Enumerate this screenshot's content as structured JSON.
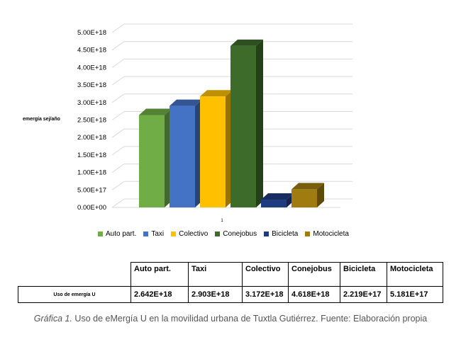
{
  "chart_data": {
    "type": "bar",
    "ylabel": "emergía sej/año",
    "xlabel": "1",
    "categories": [
      "1"
    ],
    "ylim": [
      0,
      5e+18
    ],
    "yticks": [
      "0.00E+00",
      "5.00E+17",
      "1.00E+18",
      "1.50E+18",
      "2.00E+18",
      "2.50E+18",
      "3.00E+18",
      "3.50E+18",
      "4.00E+18",
      "4.50E+18",
      "5.00E+18"
    ],
    "grid": true,
    "legend_position": "bottom",
    "series": [
      {
        "name": "Auto part.",
        "value": 2.642e+18,
        "color": "#70ad47"
      },
      {
        "name": "Taxi",
        "value": 2.903e+18,
        "color": "#4472c4"
      },
      {
        "name": "Colectivo",
        "value": 3.172e+18,
        "color": "#ffc000"
      },
      {
        "name": "Conejobus",
        "value": 4.618e+18,
        "color": "#3d6b2a"
      },
      {
        "name": "Bicicleta",
        "value": 2.219e+17,
        "color": "#1f3b80"
      },
      {
        "name": "Motocicleta",
        "value": 5.181e+17,
        "color": "#a07c10"
      }
    ]
  },
  "table": {
    "headers": [
      "Auto part.",
      "Taxi",
      "Colectivo",
      "Conejobus",
      "Bicicleta",
      "Motocicleta"
    ],
    "row_label": "Uso de emergía U",
    "values": [
      "2.642E+18",
      "2.903E+18",
      "3.172E+18",
      "4.618E+18",
      "2.219E+17",
      "5.181E+17"
    ]
  },
  "caption": {
    "label": "Gráfica 1.",
    "text": "Uso de eMergía U en la movilidad urbana de Tuxtla Gutiérrez. Fuente: Elaboración propia"
  }
}
